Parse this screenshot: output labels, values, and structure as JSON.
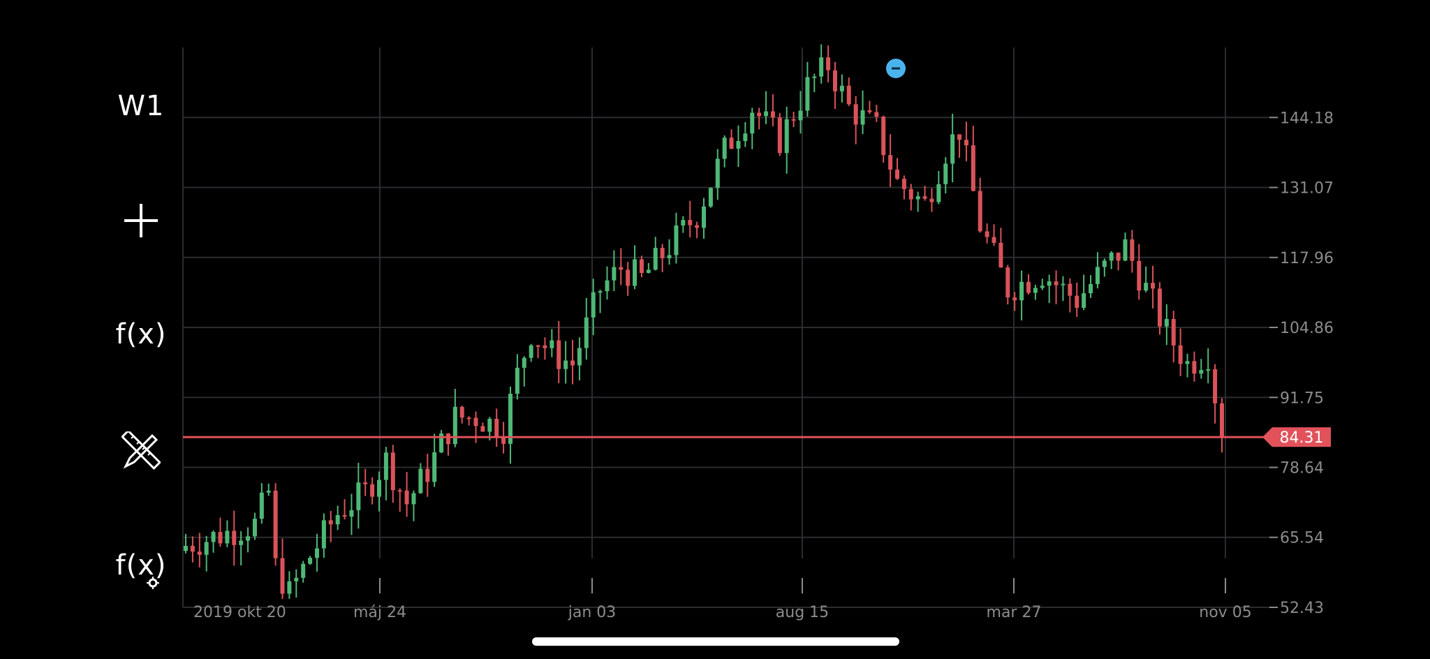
{
  "toolbar": {
    "timeframe_label": "W1",
    "indicator_label": "f(x)",
    "indicator_settings_label": "f(x)",
    "icons": [
      "crosshair-icon",
      "indicator-icon",
      "drawing-tools-icon",
      "indicator-settings-icon"
    ]
  },
  "colors": {
    "background": "#000000",
    "grid": "#2a2c2e",
    "up_candle": "#4fb876",
    "down_candle": "#d9535a",
    "price_line": "#e2525b",
    "axis_text": "#8c8c8c",
    "marker": "#4ab3ee"
  },
  "chart_data": {
    "type": "candlestick",
    "timeframe": "W1",
    "x_tick_labels": [
      "2019 okt 20",
      "máj 24",
      "jan 03",
      "aug 15",
      "mar 27",
      "nov 05"
    ],
    "y_tick_labels": [
      "144.18",
      "131.07",
      "117.96",
      "104.86",
      "91.75",
      "78.64",
      "65.54",
      "52.43"
    ],
    "ylim": [
      52.43,
      157.29
    ],
    "current_price": "84.31",
    "grid": true,
    "series": [
      {
        "close_points": [
          [
            0,
            64
          ],
          [
            5,
            66
          ],
          [
            10,
            68
          ],
          [
            12,
            74
          ],
          [
            13,
            60
          ],
          [
            15,
            55
          ],
          [
            18,
            62
          ],
          [
            22,
            70
          ],
          [
            26,
            74
          ],
          [
            29,
            80
          ],
          [
            32,
            72
          ],
          [
            35,
            78
          ],
          [
            39,
            88
          ],
          [
            42,
            88
          ],
          [
            46,
            86
          ],
          [
            48,
            96
          ],
          [
            50,
            104
          ],
          [
            53,
            100
          ],
          [
            56,
            98
          ],
          [
            60,
            112
          ],
          [
            63,
            116
          ],
          [
            66,
            114
          ],
          [
            70,
            120
          ],
          [
            74,
            126
          ],
          [
            78,
            138
          ],
          [
            82,
            146
          ],
          [
            86,
            140
          ],
          [
            90,
            150
          ],
          [
            93,
            154
          ],
          [
            96,
            146
          ],
          [
            100,
            142
          ],
          [
            103,
            132
          ],
          [
            107,
            128
          ],
          [
            110,
            138
          ],
          [
            112,
            142
          ],
          [
            115,
            124
          ],
          [
            119,
            112
          ],
          [
            124,
            115
          ],
          [
            129,
            110
          ],
          [
            133,
            116
          ],
          [
            136,
            120
          ],
          [
            139,
            112
          ],
          [
            142,
            104
          ],
          [
            145,
            98
          ],
          [
            148,
            100
          ],
          [
            150,
            84.31
          ]
        ]
      }
    ]
  }
}
